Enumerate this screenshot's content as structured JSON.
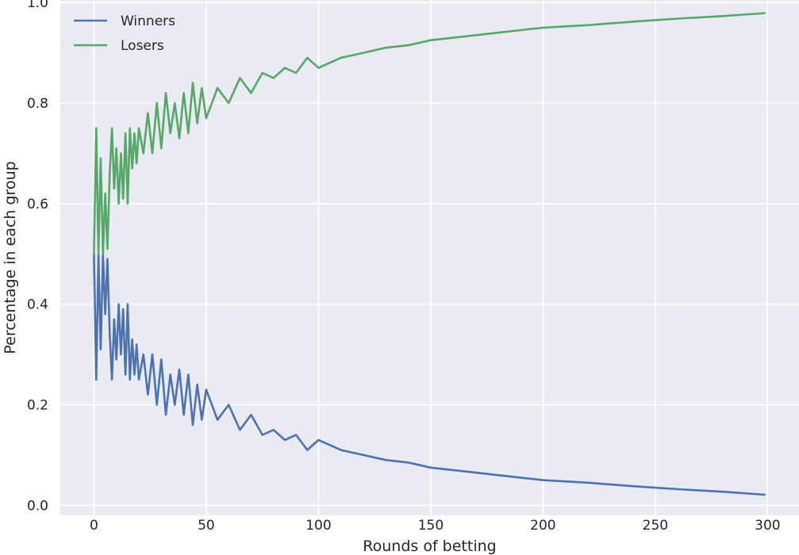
{
  "chart_data": {
    "type": "line",
    "title": "",
    "xlabel": "Rounds of betting",
    "ylabel": "Percentage in each group",
    "xlim": [
      -15,
      314
    ],
    "ylim": [
      -0.02,
      1.005
    ],
    "xticks": [
      0,
      50,
      100,
      150,
      200,
      250,
      300
    ],
    "xtick_labels": [
      "0",
      "50",
      "100",
      "150",
      "200",
      "250",
      "300"
    ],
    "yticks": [
      0.0,
      0.2,
      0.4,
      0.6,
      0.8,
      1.0
    ],
    "ytick_labels": [
      "0.0",
      "0.2",
      "0.4",
      "0.6",
      "0.8",
      "1.0"
    ],
    "grid": true,
    "legend_position": "top-left",
    "background_color": "#EAEAF2",
    "grid_color": "#FFFFFF",
    "series": [
      {
        "name": "Winners",
        "color": "#4C72B0",
        "x": [
          0,
          1,
          2,
          3,
          4,
          5,
          6,
          7,
          8,
          9,
          10,
          11,
          12,
          13,
          14,
          15,
          16,
          17,
          18,
          19,
          20,
          22,
          24,
          26,
          28,
          30,
          32,
          34,
          36,
          38,
          40,
          42,
          44,
          46,
          48,
          50,
          55,
          60,
          65,
          70,
          75,
          80,
          85,
          90,
          95,
          100,
          110,
          120,
          130,
          140,
          150,
          160,
          170,
          180,
          190,
          200,
          220,
          240,
          260,
          280,
          299
        ],
        "y": [
          0.5,
          0.25,
          0.5,
          0.31,
          0.5,
          0.38,
          0.49,
          0.34,
          0.25,
          0.37,
          0.29,
          0.4,
          0.3,
          0.39,
          0.26,
          0.4,
          0.25,
          0.33,
          0.26,
          0.32,
          0.25,
          0.3,
          0.22,
          0.3,
          0.2,
          0.29,
          0.18,
          0.26,
          0.2,
          0.27,
          0.18,
          0.26,
          0.16,
          0.24,
          0.17,
          0.23,
          0.17,
          0.2,
          0.15,
          0.18,
          0.14,
          0.15,
          0.13,
          0.14,
          0.11,
          0.13,
          0.11,
          0.1,
          0.09,
          0.085,
          0.075,
          0.07,
          0.065,
          0.06,
          0.055,
          0.05,
          0.045,
          0.038,
          0.032,
          0.027,
          0.021
        ]
      },
      {
        "name": "Losers",
        "color": "#55A868",
        "x": [
          0,
          1,
          2,
          3,
          4,
          5,
          6,
          7,
          8,
          9,
          10,
          11,
          12,
          13,
          14,
          15,
          16,
          17,
          18,
          19,
          20,
          22,
          24,
          26,
          28,
          30,
          32,
          34,
          36,
          38,
          40,
          42,
          44,
          46,
          48,
          50,
          55,
          60,
          65,
          70,
          75,
          80,
          85,
          90,
          95,
          100,
          110,
          120,
          130,
          140,
          150,
          160,
          170,
          180,
          190,
          200,
          220,
          240,
          260,
          280,
          299
        ],
        "y": [
          0.5,
          0.75,
          0.5,
          0.69,
          0.5,
          0.62,
          0.51,
          0.66,
          0.75,
          0.63,
          0.71,
          0.6,
          0.7,
          0.61,
          0.74,
          0.6,
          0.75,
          0.67,
          0.74,
          0.68,
          0.75,
          0.7,
          0.78,
          0.7,
          0.8,
          0.71,
          0.82,
          0.74,
          0.8,
          0.73,
          0.82,
          0.74,
          0.84,
          0.76,
          0.83,
          0.77,
          0.83,
          0.8,
          0.85,
          0.82,
          0.86,
          0.85,
          0.87,
          0.86,
          0.89,
          0.87,
          0.89,
          0.9,
          0.91,
          0.915,
          0.925,
          0.93,
          0.935,
          0.94,
          0.945,
          0.95,
          0.955,
          0.962,
          0.968,
          0.973,
          0.979
        ]
      }
    ]
  }
}
